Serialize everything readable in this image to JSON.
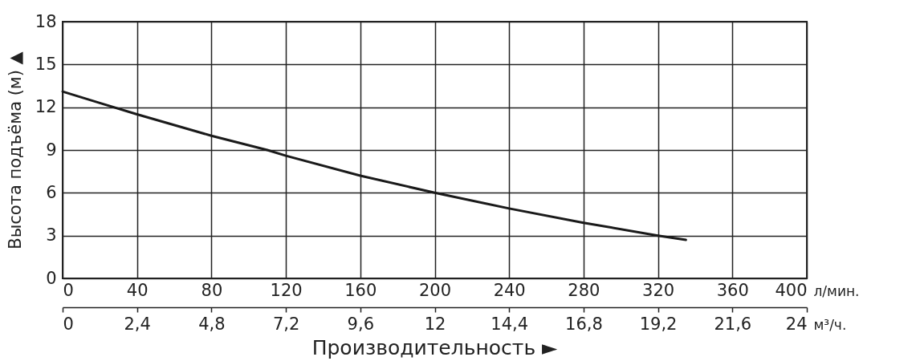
{
  "chart_data": {
    "type": "line",
    "ylabel": "Высота подъёма (м) ▲",
    "xlabel": "л/мин.",
    "x2label": "м³/ч.",
    "annotations": [
      "Производительность ►"
    ],
    "x": [
      0,
      20,
      40,
      80,
      110,
      120,
      160,
      200,
      240,
      280,
      320,
      335
    ],
    "series": [
      {
        "color": "#1a1a1a",
        "values": [
          13.1,
          12.3,
          11.5,
          10,
          9,
          8.6,
          7.2,
          6,
          4.9,
          3.9,
          3,
          2.7
        ]
      }
    ],
    "xlim": [
      0,
      400
    ],
    "xticks": [
      0,
      40,
      80,
      120,
      160,
      200,
      240,
      280,
      320,
      360,
      400
    ],
    "x2lim": [
      0,
      24
    ],
    "x2ticks": [
      0,
      {
        "value": 2.4,
        "label": "2,4"
      },
      {
        "value": 4.8,
        "label": "4,8"
      },
      {
        "value": 7.2,
        "label": "7,2"
      },
      {
        "value": 9.6,
        "label": "9,6"
      },
      12,
      {
        "value": 14.4,
        "label": "14,4"
      },
      {
        "value": 16.8,
        "label": "16,8"
      },
      {
        "value": 19.2,
        "label": "19,2"
      },
      {
        "value": 21.6,
        "label": "21,6"
      },
      24
    ],
    "ylim": [
      0,
      18
    ],
    "yticks": [
      0,
      3,
      6,
      9,
      12,
      15,
      18
    ],
    "grid": true,
    "marker": "none",
    "line_style": "solid"
  }
}
